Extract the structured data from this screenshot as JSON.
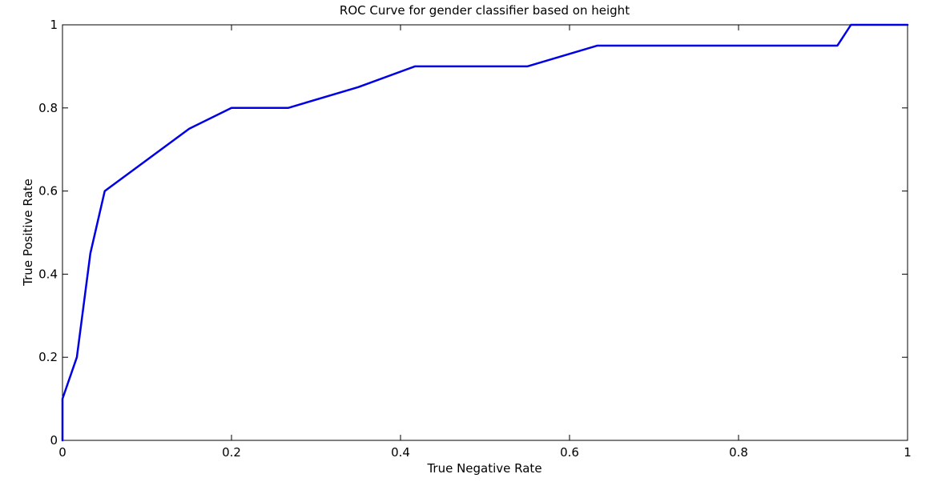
{
  "chart_data": {
    "type": "line",
    "title": "ROC Curve for gender classifier based on height",
    "xlabel": "True Negative Rate",
    "ylabel": "True Positive Rate",
    "xlim": [
      0,
      1
    ],
    "ylim": [
      0,
      1
    ],
    "xticks": [
      "0",
      "0.2",
      "0.4",
      "0.6",
      "0.8",
      "1"
    ],
    "yticks": [
      "0",
      "0.2",
      "0.4",
      "0.6",
      "0.8",
      "1"
    ],
    "grid": false,
    "series": [
      {
        "color": "#0000e6",
        "x": [
          0,
          0,
          0.017,
          0.033,
          0.05,
          0.15,
          0.2,
          0.267,
          0.35,
          0.417,
          0.55,
          0.633,
          0.917,
          0.933,
          1.0
        ],
        "y": [
          0,
          0.1,
          0.2,
          0.45,
          0.6,
          0.75,
          0.8,
          0.8,
          0.85,
          0.9,
          0.9,
          0.95,
          0.95,
          1.0,
          1.0
        ]
      }
    ]
  }
}
